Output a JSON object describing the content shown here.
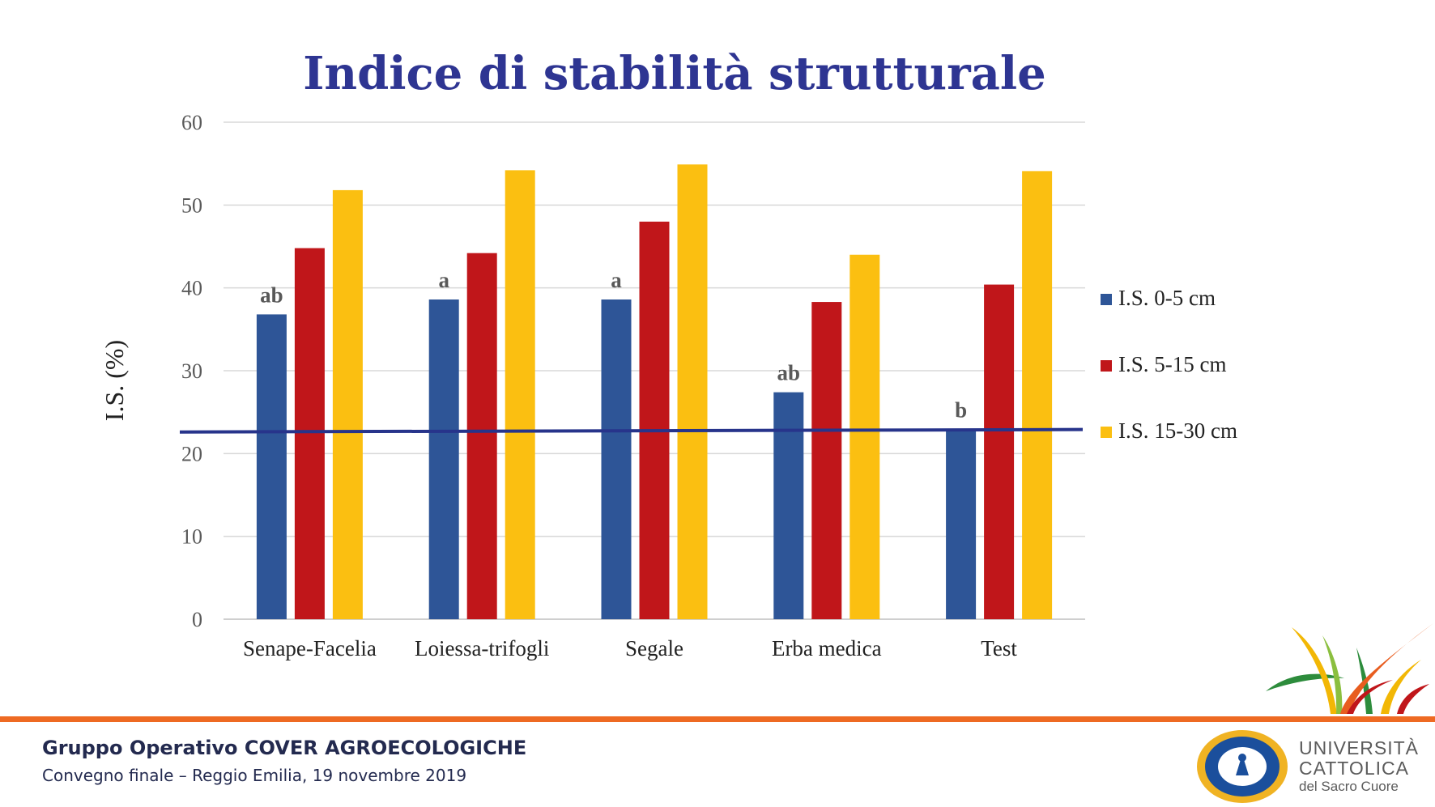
{
  "chart_data": {
    "type": "bar",
    "title": "Indice di stabilità strutturale",
    "ylabel": "I.S. (%)",
    "xlabel": "",
    "ylim": [
      0,
      60
    ],
    "yticks": [
      0,
      10,
      20,
      30,
      40,
      50,
      60
    ],
    "grid": true,
    "legend_position": "right",
    "categories": [
      "Senape-Facelia",
      "Loiessa-trifogli",
      "Segale",
      "Erba medica",
      "Test"
    ],
    "series": [
      {
        "name": "I.S. 0-5 cm",
        "color": "#2e5597",
        "values": [
          36.8,
          38.6,
          38.6,
          27.4,
          22.9
        ]
      },
      {
        "name": "I.S. 5-15 cm",
        "color": "#c0161a",
        "values": [
          44.8,
          44.2,
          48.0,
          38.3,
          40.4
        ]
      },
      {
        "name": "I.S. 15-30 cm",
        "color": "#fbbf11",
        "values": [
          51.8,
          54.2,
          54.9,
          44.0,
          54.1
        ]
      }
    ],
    "significance_labels": [
      "ab",
      "a",
      "a",
      "ab",
      "b"
    ],
    "reference_line": {
      "start": 22.6,
      "end": 22.9,
      "color": "#27348b"
    },
    "title_color": "#2e3592"
  },
  "footer": {
    "title": "Gruppo Operativo COVER AGROECOLOGICHE",
    "subtitle": "Convegno finale – Reggio Emilia, 19 novembre 2019"
  },
  "logo": {
    "line1": "UNIVERSITÀ",
    "line2": "CATTOLICA",
    "line3": "del Sacro Cuore"
  },
  "colors": {
    "accent": "#ee6a23",
    "footer_text": "#232a4f"
  }
}
